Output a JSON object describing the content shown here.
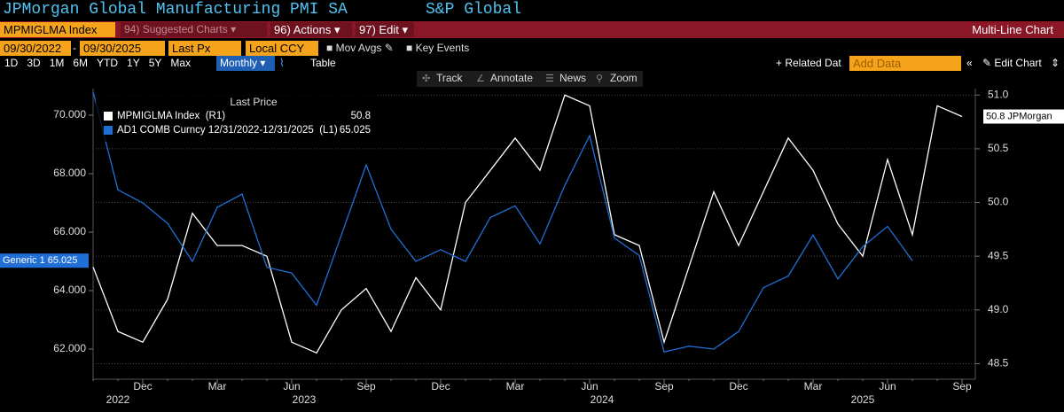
{
  "title": "JPMorgan Global Manufacturing PMI SA",
  "source": "S&P Global",
  "command_bar": {
    "ticker": "MPMIGLMA Index",
    "menus": [
      {
        "num": "94)",
        "label": "Suggested Charts"
      },
      {
        "num": "96)",
        "label": "Actions"
      },
      {
        "num": "97)",
        "label": "Edit"
      }
    ],
    "view": "Multi-Line Chart"
  },
  "settings_bar": {
    "start": "09/30/2022",
    "separator": "-",
    "end": "09/30/2025",
    "field": "Last Px",
    "currency": "Local CCY",
    "options": [
      "Mov Avgs",
      "Key Events"
    ]
  },
  "period_bar": {
    "periods": [
      "1D",
      "3D",
      "1M",
      "6M",
      "YTD",
      "1Y",
      "5Y",
      "Max"
    ],
    "frequency": "Monthly",
    "table": "Table",
    "related": "Related Dat",
    "add_data": "Add Data",
    "edit_chart": "Edit Chart"
  },
  "chart_tools": [
    "Track",
    "Annotate",
    "News",
    "Zoom"
  ],
  "chart_data": {
    "type": "line",
    "legend_title": "Last Price",
    "categories": [
      null,
      null,
      "Dec",
      null,
      null,
      "Mar",
      null,
      null,
      "Jun",
      null,
      null,
      "Sep",
      null,
      null,
      "Dec",
      null,
      null,
      "Mar",
      null,
      null,
      "Jun",
      null,
      null,
      "Sep",
      null,
      null,
      "Dec",
      null,
      null,
      "Mar",
      null,
      null,
      "Jun",
      null,
      null,
      "Sep"
    ],
    "years": [
      "2022",
      "2023",
      "2024",
      "2025"
    ],
    "series": [
      {
        "name": "MPMIGLMA Index  (R1)",
        "color": "#ffffff",
        "axis": "y2",
        "end_label": "JPMorgan",
        "values": [
          49.4,
          48.8,
          48.7,
          49.1,
          49.9,
          49.6,
          49.6,
          49.5,
          48.7,
          48.6,
          49.0,
          49.2,
          48.8,
          49.3,
          49.0,
          50.0,
          50.3,
          50.6,
          50.3,
          51.0,
          50.9,
          49.7,
          49.6,
          48.7,
          49.4,
          50.1,
          49.6,
          50.1,
          50.6,
          50.3,
          49.8,
          49.5,
          50.4,
          49.7,
          50.9,
          50.8
        ]
      },
      {
        "name": "AD1 COMB Curncy 12/31/2022-12/31/2025  (L1)",
        "color": "#1f6fd6",
        "axis": "y",
        "end_label": "Generic 1",
        "values": [
          70.8,
          67.45,
          67.0,
          66.3,
          65.0,
          66.85,
          67.3,
          64.8,
          64.6,
          63.5,
          65.9,
          68.3,
          66.1,
          65.0,
          65.4,
          65.0,
          66.5,
          66.9,
          65.6,
          67.6,
          69.3,
          65.8,
          65.2,
          61.9,
          62.1,
          62.0,
          62.6,
          64.1,
          64.5,
          65.9,
          64.4,
          65.5,
          66.2,
          65.025,
          null,
          null
        ]
      }
    ],
    "ylim": [
      61.06,
      70.91
    ],
    "yticks": [
      {
        "value": 62,
        "label": "62.000"
      },
      {
        "value": 64,
        "label": "64.000"
      },
      {
        "value": 66,
        "label": "66.000"
      },
      {
        "value": 68,
        "label": "68.000"
      },
      {
        "value": 70,
        "label": "70.000"
      }
    ],
    "y2lim": [
      48.38,
      51.06
    ],
    "y2ticks": [
      48.5,
      {
        "value": 49,
        "label": "49.0"
      },
      49.5,
      {
        "value": 50,
        "label": "50.0"
      },
      50.5,
      {
        "value": 51,
        "label": "51.0"
      }
    ],
    "grid": true
  }
}
